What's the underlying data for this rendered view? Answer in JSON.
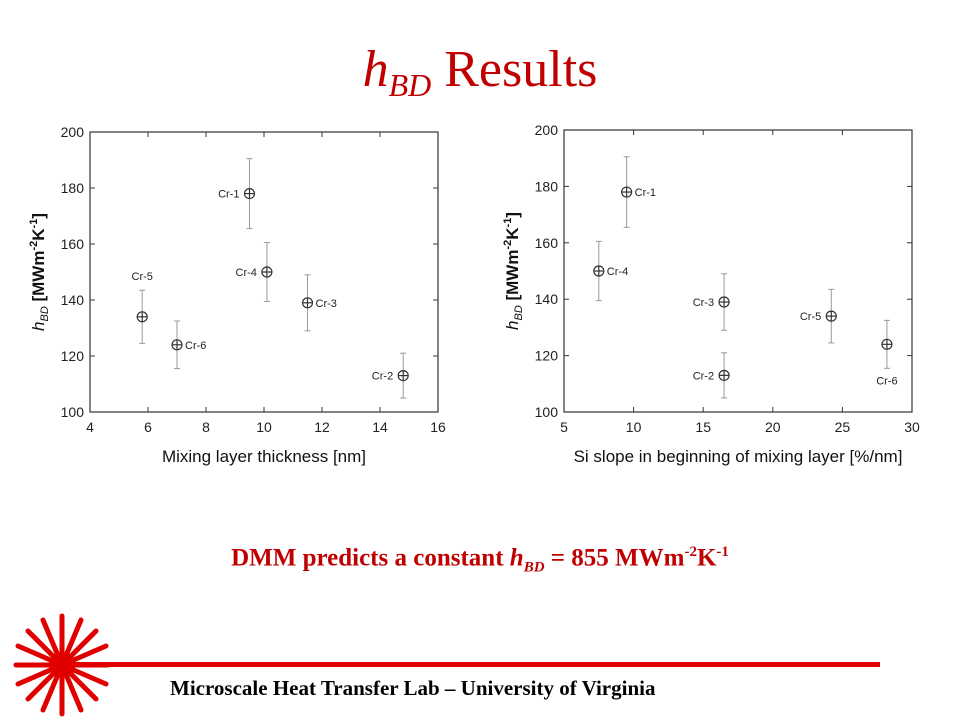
{
  "title": {
    "main": "h",
    "sub": "BD",
    "rest": " Results"
  },
  "chart_data": [
    {
      "type": "scatter",
      "xlabel": "Mixing layer thickness [nm]",
      "ylabel": "h_BD [MWm^-2K^-1]",
      "xlim": [
        4,
        16
      ],
      "ylim": [
        100,
        200
      ],
      "xticks": [
        4,
        6,
        8,
        10,
        12,
        14,
        16
      ],
      "yticks": [
        100,
        120,
        140,
        160,
        180,
        200
      ],
      "points": [
        {
          "label": "Cr-1",
          "x": 9.5,
          "y": 178,
          "err": 12.5,
          "label_side": "left"
        },
        {
          "label": "Cr-4",
          "x": 10.1,
          "y": 150,
          "err": 10.5,
          "label_side": "left"
        },
        {
          "label": "Cr-3",
          "x": 11.5,
          "y": 139,
          "err": 10,
          "label_side": "right"
        },
        {
          "label": "Cr-5",
          "x": 5.8,
          "y": 134,
          "err": 9.5,
          "label_side": "above"
        },
        {
          "label": "Cr-6",
          "x": 7.0,
          "y": 124,
          "err": 8.5,
          "label_side": "right"
        },
        {
          "label": "Cr-2",
          "x": 14.8,
          "y": 113,
          "err": 8,
          "label_side": "left"
        }
      ]
    },
    {
      "type": "scatter",
      "xlabel": "Si slope in beginning of mixing layer [%/nm]",
      "ylabel": "h_BD [MWm^-2K^-1]",
      "xlim": [
        5,
        30
      ],
      "ylim": [
        100,
        200
      ],
      "xticks": [
        5,
        10,
        15,
        20,
        25,
        30
      ],
      "yticks": [
        100,
        120,
        140,
        160,
        180,
        200
      ],
      "points": [
        {
          "label": "Cr-1",
          "x": 9.5,
          "y": 178,
          "err": 12.5,
          "label_side": "right"
        },
        {
          "label": "Cr-4",
          "x": 7.5,
          "y": 150,
          "err": 10.5,
          "label_side": "right"
        },
        {
          "label": "Cr-3",
          "x": 16.5,
          "y": 139,
          "err": 10,
          "label_side": "left"
        },
        {
          "label": "Cr-5",
          "x": 24.2,
          "y": 134,
          "err": 9.5,
          "label_side": "left"
        },
        {
          "label": "Cr-2",
          "x": 16.5,
          "y": 113,
          "err": 8,
          "label_side": "left"
        },
        {
          "label": "Cr-6",
          "x": 28.2,
          "y": 124,
          "err": 8.5,
          "label_side": "below"
        }
      ]
    }
  ],
  "dmm_note": {
    "prefix": "DMM predicts a constant ",
    "h": "h",
    "sub": "BD",
    "mid": " = 855 MWm",
    "exp1": "-2",
    "k": "K",
    "exp2": "-1"
  },
  "footer": {
    "text": "Microscale Heat Transfer Lab – University of Virginia"
  },
  "colors": {
    "accent": "#c00000",
    "footer_line": "#e00000"
  }
}
